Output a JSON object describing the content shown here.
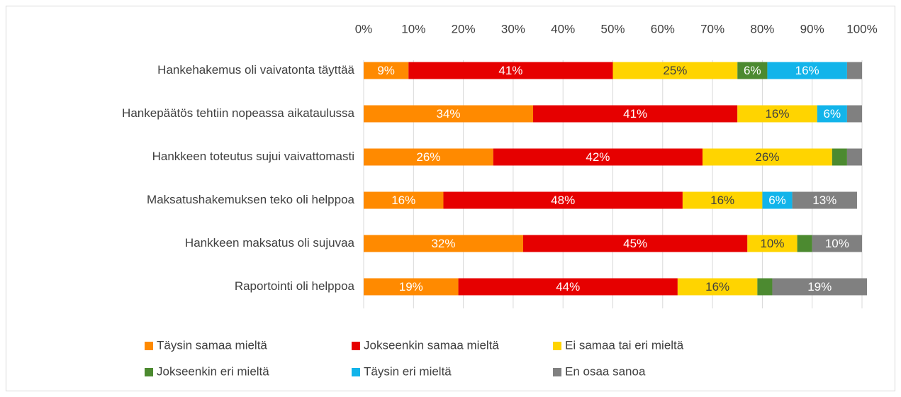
{
  "chart_data": {
    "type": "stacked_bar_horizontal",
    "categories": [
      "Hankehakemus oli vaivatonta täyttää",
      "Hankepäätös tehtiin nopeassa aikataulussa",
      "Hankkeen toteutus sujui vaivattomasti",
      "Maksatushakemuksen teko oli helppoa",
      "Hankkeen maksatus oli sujuvaa",
      "Raportointi oli helppoa"
    ],
    "series": [
      {
        "name": "Täysin samaa mieltä",
        "color": "#ff8a00",
        "label_color": "#ffffff",
        "values": [
          9,
          34,
          26,
          16,
          32,
          19
        ],
        "value_labels": [
          "9%",
          "34%",
          "26%",
          "16%",
          "32%",
          "19%"
        ]
      },
      {
        "name": "Jokseenkin samaa mieltä",
        "color": "#e60000",
        "label_color": "#ffffff",
        "values": [
          41,
          41,
          42,
          48,
          45,
          44
        ],
        "value_labels": [
          "41%",
          "41%",
          "42%",
          "48%",
          "45%",
          "44%"
        ]
      },
      {
        "name": "Ei samaa tai eri mieltä",
        "color": "#ffd400",
        "label_color": "#404040",
        "values": [
          25,
          16,
          26,
          16,
          10,
          16
        ],
        "value_labels": [
          "25%",
          "16%",
          "26%",
          "16%",
          "10%",
          "16%"
        ]
      },
      {
        "name": "Jokseenkin eri mieltä",
        "color": "#4c8a30",
        "label_color": "#ffffff",
        "values": [
          6,
          0,
          3,
          0,
          3,
          3
        ],
        "value_labels": [
          "6%",
          null,
          null,
          null,
          null,
          null
        ]
      },
      {
        "name": "Täysin eri mieltä",
        "color": "#12b4ea",
        "label_color": "#ffffff",
        "values": [
          16,
          6,
          0,
          6,
          0,
          0
        ],
        "value_labels": [
          "16%",
          "6%",
          null,
          "6%",
          null,
          null
        ]
      },
      {
        "name": "En osaa sanoa",
        "color": "#808080",
        "label_color": "#ffffff",
        "values": [
          3,
          3,
          3,
          13,
          10,
          19
        ],
        "value_labels": [
          null,
          null,
          null,
          "13%",
          "10%",
          "19%"
        ]
      }
    ],
    "xlim": [
      0,
      100
    ],
    "xticks": [
      {
        "value": 0,
        "label": "0%"
      },
      {
        "value": 10,
        "label": "10%"
      },
      {
        "value": 20,
        "label": "20%"
      },
      {
        "value": 30,
        "label": "30%"
      },
      {
        "value": 40,
        "label": "40%"
      },
      {
        "value": 50,
        "label": "50%"
      },
      {
        "value": 60,
        "label": "60%"
      },
      {
        "value": 70,
        "label": "70%"
      },
      {
        "value": 80,
        "label": "80%"
      },
      {
        "value": 90,
        "label": "90%"
      },
      {
        "value": 100,
        "label": "100%"
      }
    ],
    "grid": true,
    "legend": "bottom"
  }
}
